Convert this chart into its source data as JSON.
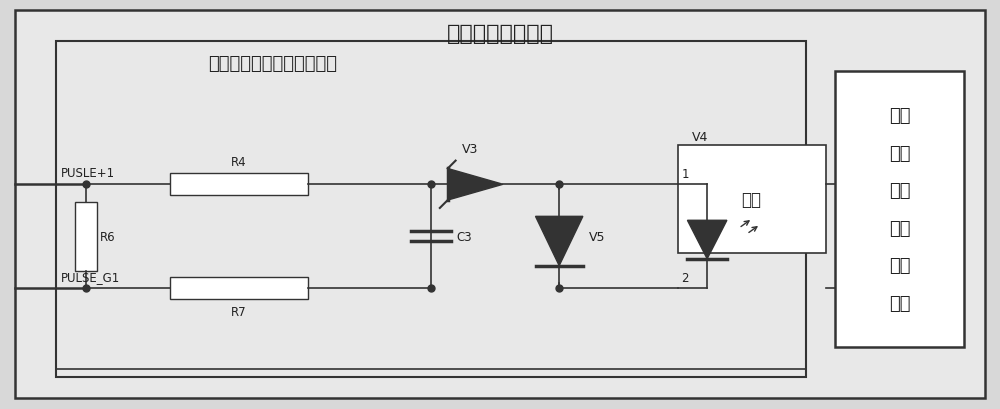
{
  "title": "控制信号隔离电路",
  "subtitle": "控制信号隔离电路低压部分",
  "right_box_lines": [
    "控制",
    "信号",
    "隔离",
    "电路",
    "高压",
    "部分"
  ],
  "fiber_text": "光纤",
  "label_pulse_pos": "PUSLE+1",
  "label_pulse_neg": "PULSE_G1",
  "label_R4": "R4",
  "label_R6": "R6",
  "label_R7": "R7",
  "label_C3": "C3",
  "label_V3": "V3",
  "label_V4": "V4",
  "label_V5": "V5",
  "label_1": "1",
  "label_2": "2",
  "bg_color": "#d8d8d8",
  "outer_box_fill": "#e8e8e8",
  "inner_box_fill": "#e8e8e8",
  "white_fill": "#ffffff",
  "lc": "#333333",
  "font_color": "#222222"
}
